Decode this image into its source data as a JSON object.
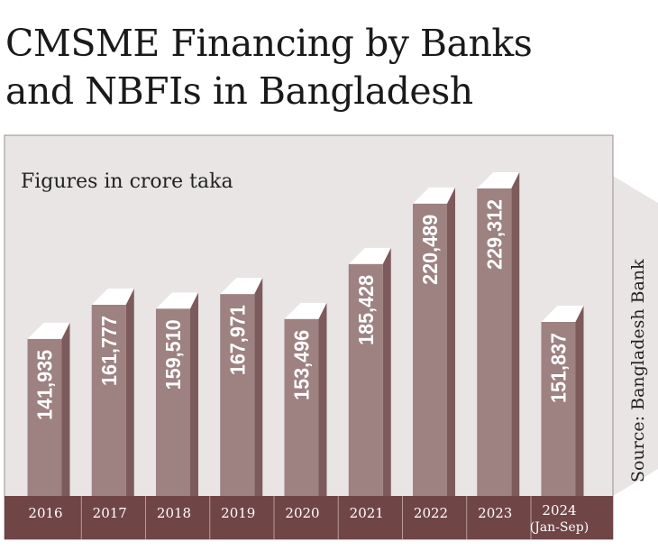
{
  "chart_data": {
    "type": "bar",
    "title": "CMSME Financing by Banks and NBFIs in Bangladesh",
    "title_lines": [
      "CMSME Financing by Banks",
      "and NBFIs in Bangladesh"
    ],
    "subtitle": "Figures in crore taka",
    "source": "Source: Bangladesh Bank",
    "categories": [
      "2016",
      "2017",
      "2018",
      "2019",
      "2020",
      "2021",
      "2022",
      "2023",
      "2024"
    ],
    "category_sublabels": [
      "",
      "",
      "",
      "",
      "",
      "",
      "",
      "",
      "(Jan-Sep)"
    ],
    "values": [
      141935,
      161777,
      159510,
      167971,
      153496,
      185428,
      220489,
      229312,
      151837
    ],
    "value_labels": [
      "141,935",
      "161,777",
      "159,510",
      "167,971",
      "153,496",
      "185,428",
      "220,489",
      "229,312",
      "151,837"
    ],
    "grid": false,
    "colors": {
      "background": "#e9e5e5",
      "bar_front": "#9e8181",
      "bar_side": "#7d5a5b",
      "bar_top": "#ffffff",
      "base": "#6f4546",
      "text_light": "#ffffff"
    }
  }
}
